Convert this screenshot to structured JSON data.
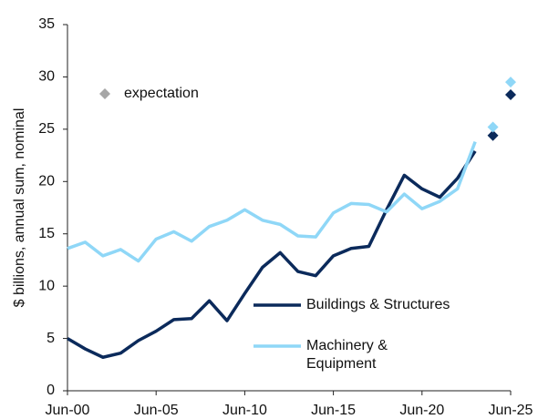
{
  "chart_data": {
    "type": "line",
    "y_label": "$ billions, annual sum, nominal",
    "x": [
      2000,
      2001,
      2002,
      2003,
      2004,
      2005,
      2006,
      2007,
      2008,
      2009,
      2010,
      2011,
      2012,
      2013,
      2014,
      2015,
      2016,
      2017,
      2018,
      2019,
      2020,
      2021,
      2022,
      2023
    ],
    "series": [
      {
        "name": "Buildings & Structures",
        "color": "#0b2a5b",
        "values": [
          5.0,
          4.0,
          3.2,
          3.6,
          4.8,
          5.7,
          6.8,
          6.9,
          8.6,
          6.7,
          9.3,
          11.8,
          13.2,
          11.4,
          11.0,
          12.9,
          13.6,
          13.8,
          17.3,
          20.6,
          19.3,
          18.5,
          20.3,
          22.9
        ],
        "expectation": [
          24.4,
          28.3
        ]
      },
      {
        "name": "Machinery & Equipment",
        "color": "#8fd7f7",
        "values": [
          13.6,
          14.2,
          12.9,
          13.5,
          12.4,
          14.5,
          15.2,
          14.3,
          15.7,
          16.3,
          17.3,
          16.3,
          15.9,
          14.8,
          14.7,
          17.0,
          17.9,
          17.8,
          17.1,
          18.8,
          17.4,
          18.1,
          19.3,
          23.8
        ],
        "expectation": [
          25.2,
          29.5
        ]
      }
    ],
    "expectation_x": [
      2024,
      2025
    ],
    "expectation_label": "expectation",
    "expectation_legend_color": "#a6a6a6",
    "xlim": [
      2000,
      2025
    ],
    "xticks": [
      {
        "value": 2000,
        "label": "Jun-00"
      },
      {
        "value": 2005,
        "label": "Jun-05"
      },
      {
        "value": 2010,
        "label": "Jun-10"
      },
      {
        "value": 2015,
        "label": "Jun-15"
      },
      {
        "value": 2020,
        "label": "Jun-20"
      },
      {
        "value": 2025,
        "label": "Jun-25"
      }
    ],
    "ylim": [
      0,
      35
    ],
    "yticks": [
      0,
      5,
      10,
      15,
      20,
      25,
      30,
      35
    ],
    "grid": false
  }
}
